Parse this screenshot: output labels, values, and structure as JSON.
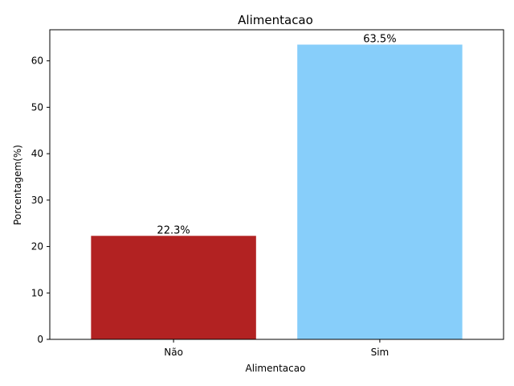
{
  "chart_data": {
    "type": "bar",
    "title": "Alimentacao",
    "xlabel": "Alimentacao",
    "ylabel": "Porcentagem(%)",
    "categories": [
      "Não",
      "Sim"
    ],
    "values": [
      22.3,
      63.5
    ],
    "data_labels": [
      "22.3%",
      "63.5%"
    ],
    "colors": [
      "#b22222",
      "#87cefa"
    ],
    "ylim": [
      0,
      66.7
    ],
    "yticks": [
      0,
      10,
      20,
      30,
      40,
      50,
      60
    ],
    "grid": false,
    "legend": "none"
  }
}
